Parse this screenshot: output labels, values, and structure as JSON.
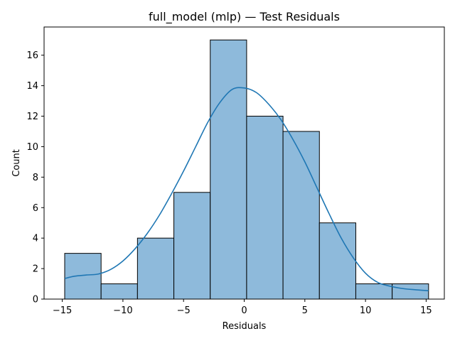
{
  "chart_data": {
    "type": "bar",
    "title": "full_model (mlp) — Test Residuals",
    "xlabel": "Residuals",
    "ylabel": "Count",
    "xlim": [
      -16.5,
      16.5
    ],
    "ylim": [
      0,
      17.85
    ],
    "bins": [
      {
        "x0": -14.8,
        "x1": -11.8,
        "count": 3
      },
      {
        "x0": -11.8,
        "x1": -8.8,
        "count": 1
      },
      {
        "x0": -8.8,
        "x1": -5.8,
        "count": 4
      },
      {
        "x0": -5.8,
        "x1": -2.8,
        "count": 7
      },
      {
        "x0": -2.8,
        "x1": 0.2,
        "count": 17
      },
      {
        "x0": 0.2,
        "x1": 3.2,
        "count": 12
      },
      {
        "x0": 3.2,
        "x1": 6.2,
        "count": 11
      },
      {
        "x0": 6.2,
        "x1": 9.2,
        "count": 5
      },
      {
        "x0": 9.2,
        "x1": 12.2,
        "count": 1
      },
      {
        "x0": 12.2,
        "x1": 15.2,
        "count": 1
      }
    ],
    "kde": {
      "x": [
        -14.8,
        -14.0,
        -13.0,
        -12.0,
        -11.0,
        -10.0,
        -9.0,
        -8.0,
        -7.0,
        -6.0,
        -5.0,
        -4.0,
        -3.0,
        -2.0,
        -1.0,
        0.0,
        1.0,
        2.0,
        3.0,
        4.0,
        5.0,
        6.0,
        7.0,
        8.0,
        9.0,
        10.0,
        11.0,
        12.0,
        13.0,
        14.0,
        15.2
      ],
      "y": [
        1.35,
        1.5,
        1.58,
        1.65,
        1.95,
        2.5,
        3.3,
        4.3,
        5.5,
        6.9,
        8.4,
        10.0,
        11.6,
        12.9,
        13.75,
        13.85,
        13.55,
        12.8,
        11.8,
        10.5,
        9.0,
        7.3,
        5.6,
        4.0,
        2.7,
        1.7,
        1.1,
        0.85,
        0.7,
        0.62,
        0.55
      ]
    },
    "xticks": [
      -15,
      -10,
      -5,
      0,
      5,
      10,
      15
    ],
    "yticks": [
      0,
      2,
      4,
      6,
      8,
      10,
      12,
      14,
      16
    ],
    "bar_color": "#8ebadb",
    "bar_edge": "#000000",
    "line_color": "#1f77b4",
    "grid": false,
    "legend": "none"
  }
}
